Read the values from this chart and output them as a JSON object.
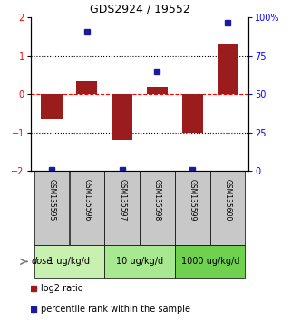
{
  "title": "GDS2924 / 19552",
  "samples": [
    "GSM135595",
    "GSM135596",
    "GSM135597",
    "GSM135598",
    "GSM135599",
    "GSM135600"
  ],
  "log2_ratio": [
    -0.65,
    0.35,
    -1.2,
    0.2,
    -1.0,
    1.3
  ],
  "percentile_rank": [
    1,
    91,
    1,
    65,
    1,
    97
  ],
  "bar_color": "#9B1C1C",
  "dot_color": "#1C1C9B",
  "ylim_left": [
    -2,
    2
  ],
  "ylim_right": [
    0,
    100
  ],
  "yticks_left": [
    -2,
    -1,
    0,
    1,
    2
  ],
  "yticks_right": [
    0,
    25,
    50,
    75,
    100
  ],
  "ytick_labels_right": [
    "0",
    "25",
    "50",
    "75",
    "100%"
  ],
  "dotted_lines": [
    -1,
    1
  ],
  "dose_groups": [
    {
      "label": "1 ug/kg/d",
      "samples": [
        0,
        1
      ],
      "color": "#c8f0b0"
    },
    {
      "label": "10 ug/kg/d",
      "samples": [
        2,
        3
      ],
      "color": "#a8e890"
    },
    {
      "label": "1000 ug/kg/d",
      "samples": [
        4,
        5
      ],
      "color": "#70d050"
    }
  ],
  "dose_label": "dose",
  "legend_red_label": "log2 ratio",
  "legend_blue_label": "percentile rank within the sample",
  "background_color": "#ffffff",
  "sample_box_color": "#c8c8c8"
}
